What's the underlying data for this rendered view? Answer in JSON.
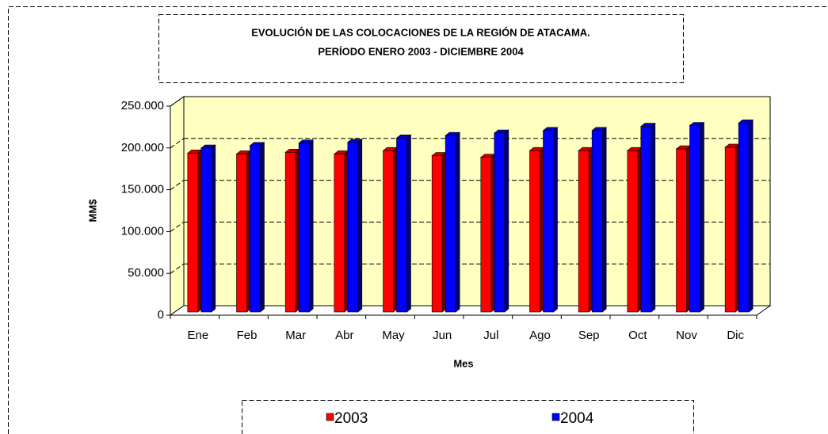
{
  "chart_data": {
    "type": "bar",
    "title": "EVOLUCIÓN DE LAS COLOCACIONES DE LA REGIÓN DE ATACAMA.",
    "subtitle": "PERÍODO ENERO 2003 - DICIEMBRE 2004",
    "x_label": "Mes",
    "y_label": "MM$",
    "categories": [
      "Ene",
      "Feb",
      "Mar",
      "Abr",
      "May",
      "Jun",
      "Jul",
      "Ago",
      "Sep",
      "Oct",
      "Nov",
      "Dic"
    ],
    "series": [
      {
        "name": "2003",
        "color": "#ff0000",
        "values": [
          190000,
          189000,
          191000,
          189000,
          193000,
          187000,
          185000,
          193000,
          193000,
          193000,
          195000,
          197000
        ]
      },
      {
        "name": "2004",
        "color": "#0000ff",
        "values": [
          196000,
          199000,
          202000,
          203000,
          208000,
          211000,
          214000,
          217000,
          217000,
          222000,
          223000,
          226000
        ]
      }
    ],
    "ylim": [
      0,
      250000
    ],
    "yticks": [
      0,
      {
        "value": 50000,
        "label": "50.000"
      },
      {
        "value": 100000,
        "label": "100.000"
      },
      {
        "value": 150000,
        "label": "150.000"
      },
      {
        "value": 200000,
        "label": "200.000"
      },
      {
        "value": 250000,
        "label": "250.000"
      }
    ],
    "grid": true,
    "wall_color": "#ffffc0"
  }
}
